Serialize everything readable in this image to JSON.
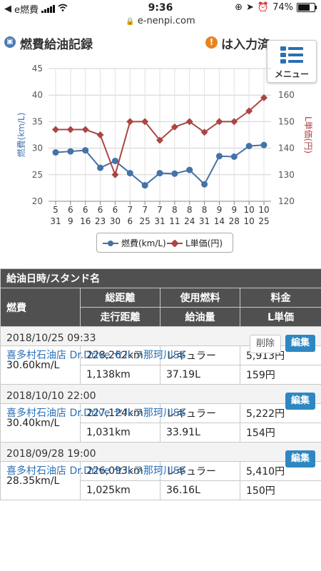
{
  "status_bar": {
    "carrier": "e燃費",
    "time": "9:36",
    "battery": "74%",
    "battery_level": 0.74
  },
  "browser": {
    "url": "e-nenpi.com"
  },
  "header": {
    "title": "燃費給油記録",
    "notice": "は入力済",
    "menu_label": "メニュー",
    "colors": {
      "title_icon": "#4a7ab5",
      "notice_icon": "#e8841c"
    }
  },
  "chart_data": {
    "type": "line",
    "categories": [
      [
        "5",
        "31"
      ],
      [
        "6",
        "9"
      ],
      [
        "6",
        "16"
      ],
      [
        "6",
        "23"
      ],
      [
        "6",
        "30"
      ],
      [
        "7",
        "6"
      ],
      [
        "7",
        "25"
      ],
      [
        "7",
        "31"
      ],
      [
        "8",
        "11"
      ],
      [
        "8",
        "24"
      ],
      [
        "8",
        "31"
      ],
      [
        "9",
        "14"
      ],
      [
        "9",
        "28"
      ],
      [
        "10",
        "10"
      ],
      [
        "10",
        "25"
      ]
    ],
    "series": [
      {
        "name": "燃費(km/L)",
        "axis": "left",
        "color": "#4572a7",
        "values": [
          29.2,
          29.4,
          29.6,
          26.3,
          27.6,
          25.3,
          23.0,
          25.3,
          25.2,
          25.9,
          23.2,
          28.5,
          28.4,
          30.4,
          30.6
        ]
      },
      {
        "name": "L単価(円)",
        "axis": "right",
        "color": "#aa4643",
        "values": [
          147,
          147,
          147,
          145,
          130,
          150,
          150,
          143,
          148,
          150,
          146,
          150,
          150,
          154,
          159
        ]
      }
    ],
    "ylabel": "燃費(km/L)",
    "y2label": "L単価(円)",
    "ylim": [
      20,
      45
    ],
    "yticks": [
      20,
      25,
      30,
      35,
      40,
      45
    ],
    "y2lim": [
      120,
      170
    ],
    "y2ticks": [
      120,
      130,
      140,
      150,
      160
    ],
    "grid": true,
    "legend_position": "bottom"
  },
  "table": {
    "header_row1": [
      "給油日時/スタンド名"
    ],
    "header_fuel": "燃費",
    "header_cols_top": [
      "総距離",
      "使用燃料",
      "料金"
    ],
    "header_cols_bottom": [
      "走行距離",
      "給油量",
      "L単価"
    ],
    "records": [
      {
        "datetime": "2018/10/25 09:33",
        "station": "喜多村石油店 Dr.Drive セルフ那珂川SS",
        "show_delete": true,
        "delete_label": "削除",
        "edit_label": "編集",
        "fuel_economy": "30.60km/L",
        "total_distance": "228,262km",
        "fuel_type": "レギュラー",
        "price": "5,913円",
        "trip_distance": "1,138km",
        "fuel_amount": "37.19L",
        "unit_price": "159円"
      },
      {
        "datetime": "2018/10/10 22:00",
        "station": "喜多村石油店 Dr.Drive セルフ那珂川SS",
        "show_delete": false,
        "edit_label": "編集",
        "fuel_economy": "30.40km/L",
        "total_distance": "227,124km",
        "fuel_type": "レギュラー",
        "price": "5,222円",
        "trip_distance": "1,031km",
        "fuel_amount": "33.91L",
        "unit_price": "154円"
      },
      {
        "datetime": "2018/09/28 19:00",
        "station": "喜多村石油店 Dr.Drive セルフ那珂川SS",
        "show_delete": false,
        "edit_label": "編集",
        "fuel_economy": "28.35km/L",
        "total_distance": "226,093km",
        "fuel_type": "レギュラー",
        "price": "5,410円",
        "trip_distance": "1,025km",
        "fuel_amount": "36.16L",
        "unit_price": "150円"
      }
    ]
  }
}
